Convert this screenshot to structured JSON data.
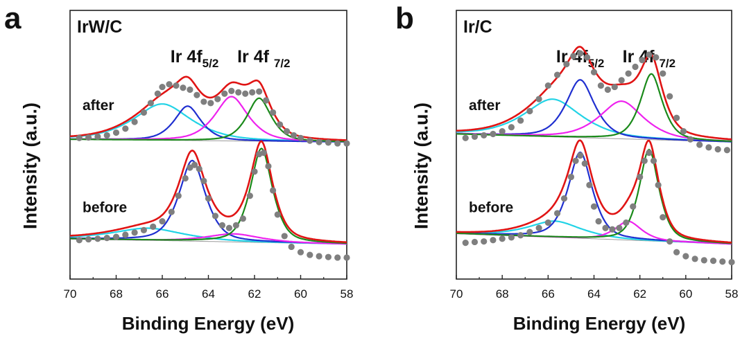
{
  "chart_data": [
    {
      "type": "line",
      "panel_letter": "a",
      "sample": "IrW/C",
      "xlabel": "Binding Energy (eV)",
      "ylabel": "Intensity (a.u.)",
      "xlim": [
        70,
        58
      ],
      "ylim": [
        0,
        1
      ],
      "xticks": [
        70,
        68,
        66,
        64,
        62,
        60,
        58
      ],
      "peak_labels": [
        {
          "main": "Ir 4f",
          "sub": "5/2",
          "x": 64.6
        },
        {
          "main": "Ir 4f ",
          "sub": "7/2",
          "x": 61.6
        }
      ],
      "states": [
        {
          "name": "after",
          "baseline": 0.51,
          "tilt": 0.01,
          "components": [
            {
              "color": "#22d3e6",
              "center": 66.0,
              "height": 0.135,
              "width": 1.3
            },
            {
              "color": "#1f2fd0",
              "center": 64.9,
              "height": 0.128,
              "width": 0.6
            },
            {
              "color": "#ee22ee",
              "center": 63.0,
              "height": 0.165,
              "width": 0.75
            },
            {
              "color": "#1a8a1a",
              "center": 61.8,
              "height": 0.16,
              "width": 0.55
            }
          ],
          "points": [
            [
              69.6,
              0.525
            ],
            [
              69.2,
              0.527
            ],
            [
              68.8,
              0.53
            ],
            [
              68.4,
              0.535
            ],
            [
              68.0,
              0.545
            ],
            [
              67.6,
              0.56
            ],
            [
              67.2,
              0.585
            ],
            [
              66.8,
              0.62
            ],
            [
              66.5,
              0.655
            ],
            [
              66.2,
              0.69
            ],
            [
              66.0,
              0.715
            ],
            [
              65.7,
              0.725
            ],
            [
              65.4,
              0.72
            ],
            [
              65.1,
              0.712
            ],
            [
              64.8,
              0.705
            ],
            [
              64.5,
              0.685
            ],
            [
              64.2,
              0.66
            ],
            [
              63.9,
              0.655
            ],
            [
              63.6,
              0.67
            ],
            [
              63.3,
              0.69
            ],
            [
              63.0,
              0.7
            ],
            [
              62.7,
              0.695
            ],
            [
              62.4,
              0.69
            ],
            [
              62.1,
              0.695
            ],
            [
              61.8,
              0.698
            ],
            [
              61.5,
              0.665
            ],
            [
              61.2,
              0.62
            ],
            [
              60.9,
              0.575
            ],
            [
              60.6,
              0.55
            ],
            [
              60.3,
              0.535
            ],
            [
              60.0,
              0.525
            ],
            [
              59.6,
              0.515
            ],
            [
              59.2,
              0.51
            ],
            [
              58.8,
              0.508
            ],
            [
              58.4,
              0.505
            ],
            [
              58.0,
              0.505
            ]
          ]
        },
        {
          "name": "before",
          "baseline": 0.13,
          "tilt": 0.02,
          "components": [
            {
              "color": "#22d3e6",
              "center": 66.6,
              "height": 0.045,
              "width": 1.6
            },
            {
              "color": "#1f2fd0",
              "center": 64.7,
              "height": 0.3,
              "width": 0.6
            },
            {
              "color": "#ee22ee",
              "center": 62.9,
              "height": 0.03,
              "width": 1.2
            },
            {
              "color": "#1a8a1a",
              "center": 61.7,
              "height": 0.35,
              "width": 0.5
            }
          ],
          "points": [
            [
              69.6,
              0.145
            ],
            [
              69.2,
              0.148
            ],
            [
              68.8,
              0.15
            ],
            [
              68.4,
              0.153
            ],
            [
              68.0,
              0.157
            ],
            [
              67.6,
              0.165
            ],
            [
              67.2,
              0.173
            ],
            [
              66.8,
              0.182
            ],
            [
              66.4,
              0.195
            ],
            [
              66.0,
              0.215
            ],
            [
              65.6,
              0.25
            ],
            [
              65.3,
              0.31
            ],
            [
              65.0,
              0.375
            ],
            [
              64.8,
              0.415
            ],
            [
              64.6,
              0.425
            ],
            [
              64.4,
              0.41
            ],
            [
              64.2,
              0.365
            ],
            [
              64.0,
              0.3
            ],
            [
              63.7,
              0.235
            ],
            [
              63.4,
              0.2
            ],
            [
              63.1,
              0.19
            ],
            [
              62.8,
              0.2
            ],
            [
              62.5,
              0.225
            ],
            [
              62.2,
              0.31
            ],
            [
              62.0,
              0.4
            ],
            [
              61.8,
              0.465
            ],
            [
              61.6,
              0.47
            ],
            [
              61.4,
              0.42
            ],
            [
              61.2,
              0.33
            ],
            [
              61.0,
              0.24
            ],
            [
              60.7,
              0.16
            ],
            [
              60.4,
              0.12
            ],
            [
              60.0,
              0.1
            ],
            [
              59.6,
              0.09
            ],
            [
              59.2,
              0.085
            ],
            [
              58.8,
              0.082
            ],
            [
              58.4,
              0.08
            ],
            [
              58.0,
              0.08
            ]
          ]
        }
      ]
    },
    {
      "type": "line",
      "panel_letter": "b",
      "sample": "Ir/C",
      "xlabel": "Binding Energy (eV)",
      "ylabel": "Intensity (a.u.)",
      "xlim": [
        70,
        58
      ],
      "ylim": [
        0,
        1
      ],
      "xticks": [
        70,
        68,
        66,
        64,
        62,
        60,
        58
      ],
      "peak_labels": [
        {
          "main": "Ir 4f",
          "sub": "5/2",
          "x": 64.6
        },
        {
          "main": "Ir 4f ",
          "sub": "7/2",
          "x": 61.6
        }
      ],
      "states": [
        {
          "name": "after",
          "baseline": 0.51,
          "tilt": 0.03,
          "components": [
            {
              "color": "#22d3e6",
              "center": 65.8,
              "height": 0.14,
              "width": 1.3
            },
            {
              "color": "#1f2fd0",
              "center": 64.6,
              "height": 0.215,
              "width": 0.65
            },
            {
              "color": "#ee22ee",
              "center": 62.8,
              "height": 0.14,
              "width": 1.0
            },
            {
              "color": "#1a8a1a",
              "center": 61.5,
              "height": 0.245,
              "width": 0.5
            }
          ],
          "points": [
            [
              69.6,
              0.525
            ],
            [
              69.2,
              0.53
            ],
            [
              68.8,
              0.535
            ],
            [
              68.4,
              0.54
            ],
            [
              68.0,
              0.55
            ],
            [
              67.6,
              0.565
            ],
            [
              67.2,
              0.59
            ],
            [
              66.8,
              0.625
            ],
            [
              66.4,
              0.67
            ],
            [
              66.0,
              0.72
            ],
            [
              65.6,
              0.76
            ],
            [
              65.2,
              0.8
            ],
            [
              64.9,
              0.83
            ],
            [
              64.6,
              0.84
            ],
            [
              64.3,
              0.825
            ],
            [
              64.0,
              0.77
            ],
            [
              63.7,
              0.72
            ],
            [
              63.4,
              0.705
            ],
            [
              63.1,
              0.715
            ],
            [
              62.8,
              0.74
            ],
            [
              62.5,
              0.765
            ],
            [
              62.2,
              0.79
            ],
            [
              61.9,
              0.815
            ],
            [
              61.6,
              0.835
            ],
            [
              61.3,
              0.825
            ],
            [
              61.0,
              0.765
            ],
            [
              60.7,
              0.68
            ],
            [
              60.4,
              0.6
            ],
            [
              60.1,
              0.55
            ],
            [
              59.8,
              0.52
            ],
            [
              59.4,
              0.5
            ],
            [
              59.0,
              0.49
            ],
            [
              58.6,
              0.483
            ],
            [
              58.2,
              0.48
            ]
          ]
        },
        {
          "name": "before",
          "baseline": 0.13,
          "tilt": 0.04,
          "components": [
            {
              "color": "#22d3e6",
              "center": 65.7,
              "height": 0.06,
              "width": 1.2
            },
            {
              "color": "#1f2fd0",
              "center": 64.6,
              "height": 0.32,
              "width": 0.55
            },
            {
              "color": "#ee22ee",
              "center": 62.5,
              "height": 0.07,
              "width": 0.6
            },
            {
              "color": "#1a8a1a",
              "center": 61.6,
              "height": 0.34,
              "width": 0.45
            }
          ],
          "points": [
            [
              69.6,
              0.135
            ],
            [
              69.2,
              0.138
            ],
            [
              68.8,
              0.14
            ],
            [
              68.4,
              0.145
            ],
            [
              68.0,
              0.15
            ],
            [
              67.6,
              0.155
            ],
            [
              67.2,
              0.163
            ],
            [
              66.8,
              0.175
            ],
            [
              66.4,
              0.19
            ],
            [
              66.0,
              0.21
            ],
            [
              65.6,
              0.245
            ],
            [
              65.3,
              0.3
            ],
            [
              65.0,
              0.38
            ],
            [
              64.8,
              0.44
            ],
            [
              64.6,
              0.46
            ],
            [
              64.4,
              0.43
            ],
            [
              64.2,
              0.35
            ],
            [
              64.0,
              0.27
            ],
            [
              63.8,
              0.215
            ],
            [
              63.5,
              0.19
            ],
            [
              63.2,
              0.185
            ],
            [
              62.9,
              0.19
            ],
            [
              62.6,
              0.21
            ],
            [
              62.3,
              0.27
            ],
            [
              62.0,
              0.38
            ],
            [
              61.8,
              0.44
            ],
            [
              61.6,
              0.47
            ],
            [
              61.4,
              0.44
            ],
            [
              61.2,
              0.35
            ],
            [
              61.0,
              0.23
            ],
            [
              60.7,
              0.14
            ],
            [
              60.4,
              0.1
            ],
            [
              60.0,
              0.085
            ],
            [
              59.6,
              0.075
            ],
            [
              59.2,
              0.07
            ],
            [
              58.8,
              0.068
            ],
            [
              58.4,
              0.065
            ],
            [
              58.0,
              0.063
            ]
          ]
        }
      ]
    }
  ]
}
